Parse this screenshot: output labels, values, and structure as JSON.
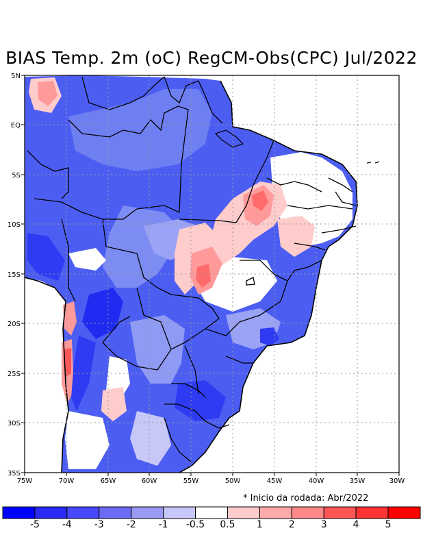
{
  "title": "BIAS Temp. 2m (oC) RegCM-Obs(CPC) Jul/2022",
  "note": "* Inicio da rodada: Abr/2022",
  "lon_ticks": [
    "75W",
    "70W",
    "65W",
    "60W",
    "55W",
    "50W",
    "45W",
    "40W",
    "35W",
    "30W"
  ],
  "lat_ticks": [
    "5N",
    "EQ",
    "5S",
    "10S",
    "15S",
    "20S",
    "25S",
    "30S",
    "35S"
  ],
  "colorbar": {
    "colors": [
      "#0000ff",
      "#2b2bf5",
      "#4848ff",
      "#6b6bf4",
      "#9a9af5",
      "#c8c8f8",
      "#ffffff",
      "#ffcccc",
      "#ffaaaa",
      "#ff8888",
      "#ff5555",
      "#ff3333",
      "#ff0000"
    ],
    "labels": [
      "-5",
      "-4",
      "-3",
      "-2",
      "-1",
      "-0.5",
      "0.5",
      "1",
      "2",
      "3",
      "4",
      "5"
    ]
  },
  "palette": {
    "background": "#4a5cf0",
    "grid": "#999999",
    "border": "#000000"
  }
}
